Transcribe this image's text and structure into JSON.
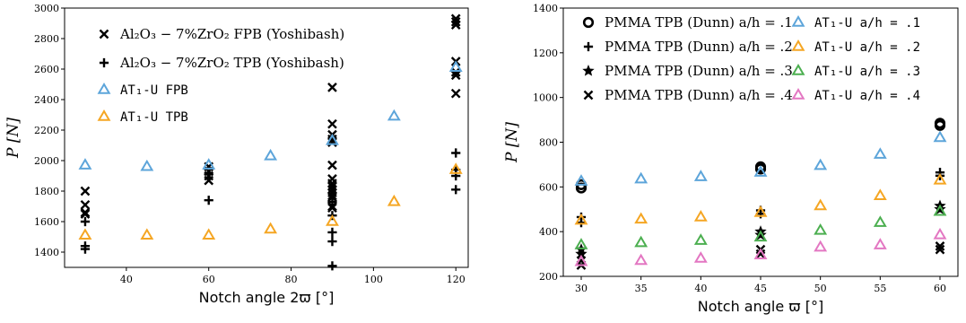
{
  "chart_data": [
    {
      "type": "scatter",
      "xlabel": "Notch angle 2ϖ [°]",
      "ylabel": "P [N]",
      "xlim": [
        25,
        123
      ],
      "ylim": [
        1300,
        3000
      ],
      "xticks": [
        40,
        60,
        80,
        100,
        120
      ],
      "yticks": [
        1400,
        1600,
        1800,
        2000,
        2200,
        2400,
        2600,
        2800,
        3000
      ],
      "legend_position": "upper-left",
      "series": [
        {
          "name": "Al₂O₃ − 7%ZrO₂ FPB (Yoshibash)",
          "marker": "x",
          "color": "#000000",
          "x": [
            30,
            30,
            30,
            30,
            60,
            60,
            60,
            60,
            90,
            90,
            90,
            90,
            90,
            90,
            90,
            90,
            90,
            90,
            90,
            90,
            90,
            90,
            90,
            120,
            120,
            120,
            120,
            120,
            120,
            120
          ],
          "y": [
            1660,
            1710,
            1800,
            1650,
            1870,
            1900,
            1930,
            1960,
            2480,
            2240,
            2170,
            2140,
            2120,
            1970,
            1880,
            1850,
            1830,
            1810,
            1790,
            1770,
            1760,
            1700,
            1690,
            2930,
            2910,
            2890,
            2650,
            2580,
            2560,
            2440
          ]
        },
        {
          "name": "Al₂O₃ − 7%ZrO₂ TPB (Yoshibash)",
          "marker": "+",
          "color": "#000000",
          "x": [
            30,
            30,
            30,
            60,
            60,
            90,
            90,
            90,
            90,
            90,
            120,
            120,
            120,
            120
          ],
          "y": [
            1600,
            1440,
            1420,
            1910,
            1740,
            1730,
            1640,
            1530,
            1470,
            1310,
            2050,
            1940,
            1900,
            1810
          ]
        },
        {
          "name": "AT₁-U FPB",
          "marker": "triangle",
          "color": "#5DA5DA",
          "x": [
            30,
            45,
            60,
            75,
            90,
            105,
            120
          ],
          "y": [
            1970,
            1960,
            1970,
            2030,
            2130,
            2290,
            2610
          ]
        },
        {
          "name": "AT₁-U TPB",
          "marker": "triangle",
          "color": "#F5A623",
          "x": [
            30,
            45,
            60,
            75,
            90,
            105,
            120
          ],
          "y": [
            1510,
            1510,
            1510,
            1550,
            1600,
            1730,
            1940
          ]
        }
      ]
    },
    {
      "type": "scatter",
      "xlabel": "Notch angle ϖ [°]",
      "ylabel": "P [N]",
      "xlim": [
        28.5,
        61.5
      ],
      "ylim": [
        200,
        1400
      ],
      "xticks": [
        30,
        35,
        40,
        45,
        50,
        55,
        60
      ],
      "yticks": [
        200,
        400,
        600,
        800,
        1000,
        1200,
        1400
      ],
      "legend_position": "top",
      "series": [
        {
          "name": "PMMA TPB (Dunn) a/h = .1",
          "marker": "o",
          "color": "#000000",
          "x": [
            30,
            30,
            45,
            45,
            60,
            60
          ],
          "y": [
            610,
            595,
            690,
            680,
            885,
            875
          ]
        },
        {
          "name": "PMMA TPB (Dunn) a/h = .2",
          "marker": "+",
          "color": "#000000",
          "x": [
            30,
            30,
            45,
            45,
            60,
            60
          ],
          "y": [
            465,
            440,
            495,
            480,
            665,
            650
          ]
        },
        {
          "name": "PMMA TPB (Dunn) a/h = .3",
          "marker": "*",
          "color": "#000000",
          "x": [
            30,
            30,
            45,
            45,
            60,
            60
          ],
          "y": [
            320,
            300,
            400,
            385,
            515,
            500
          ]
        },
        {
          "name": "PMMA TPB (Dunn) a/h = .4",
          "marker": "x",
          "color": "#000000",
          "x": [
            30,
            30,
            45,
            45,
            60,
            60
          ],
          "y": [
            270,
            250,
            320,
            300,
            335,
            320
          ]
        },
        {
          "name": "AT₁-U a/h = .1",
          "marker": "triangle",
          "color": "#5DA5DA",
          "x": [
            30,
            35,
            40,
            45,
            50,
            55,
            60
          ],
          "y": [
            625,
            635,
            645,
            665,
            695,
            745,
            820
          ]
        },
        {
          "name": "AT₁-U a/h = .2",
          "marker": "triangle",
          "color": "#F5A623",
          "x": [
            30,
            35,
            40,
            45,
            50,
            55,
            60
          ],
          "y": [
            450,
            455,
            465,
            485,
            515,
            560,
            630
          ]
        },
        {
          "name": "AT₁-U a/h = .3",
          "marker": "triangle",
          "color": "#4CAF50",
          "x": [
            30,
            35,
            40,
            45,
            50,
            55,
            60
          ],
          "y": [
            340,
            350,
            360,
            375,
            405,
            440,
            490
          ]
        },
        {
          "name": "AT₁-U a/h = .4",
          "marker": "triangle",
          "color": "#E377C2",
          "x": [
            30,
            35,
            40,
            45,
            50,
            55,
            60
          ],
          "y": [
            265,
            270,
            280,
            295,
            330,
            340,
            385
          ]
        }
      ]
    }
  ]
}
